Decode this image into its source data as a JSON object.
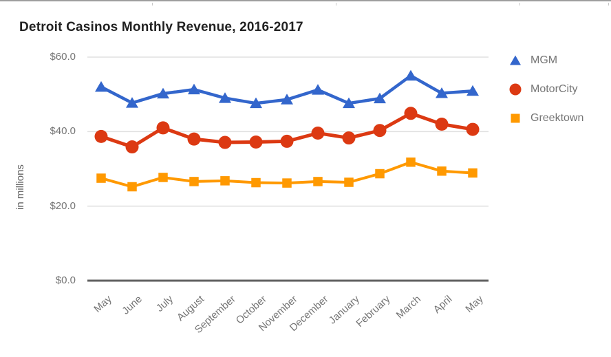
{
  "chart_data": {
    "type": "line",
    "title": "Detroit Casinos Monthly Revenue, 2016-2017",
    "ylabel": "in millions",
    "categories": [
      "May",
      "June",
      "July",
      "August",
      "September",
      "October",
      "November",
      "December",
      "January",
      "February",
      "March",
      "April",
      "May"
    ],
    "series": [
      {
        "name": "MGM",
        "color": "#3366CC",
        "marker": "triangle",
        "values": [
          52.0,
          47.7,
          50.2,
          51.3,
          49.0,
          47.6,
          48.6,
          51.2,
          47.6,
          48.9,
          55.0,
          50.3,
          50.9
        ]
      },
      {
        "name": "MotorCity",
        "color": "#DC3912",
        "marker": "circle",
        "values": [
          38.7,
          35.9,
          41.0,
          38.0,
          37.1,
          37.2,
          37.4,
          39.6,
          38.3,
          40.3,
          44.9,
          42.0,
          40.6
        ]
      },
      {
        "name": "Greektown",
        "color": "#FF9900",
        "marker": "square",
        "values": [
          27.5,
          25.2,
          27.7,
          26.6,
          26.8,
          26.3,
          26.2,
          26.6,
          26.4,
          28.7,
          31.8,
          29.4,
          28.9
        ]
      }
    ],
    "yticks": [
      {
        "label": "$0.0",
        "value": 0
      },
      {
        "label": "$20.0",
        "value": 20
      },
      {
        "label": "$40.0",
        "value": 40
      },
      {
        "label": "$60.0",
        "value": 60
      }
    ],
    "ylim": [
      0,
      60
    ],
    "grid": true,
    "legend_position": "right",
    "xtick_angle_deg": -42
  },
  "colors": {
    "axis_line": "#616161",
    "gridline": "#E0E0E0",
    "tick_label": "#757575",
    "title_text": "#212121",
    "ylabel_text": "#616161",
    "legend_label": "#757575",
    "top_border": "#9E9E9E"
  }
}
